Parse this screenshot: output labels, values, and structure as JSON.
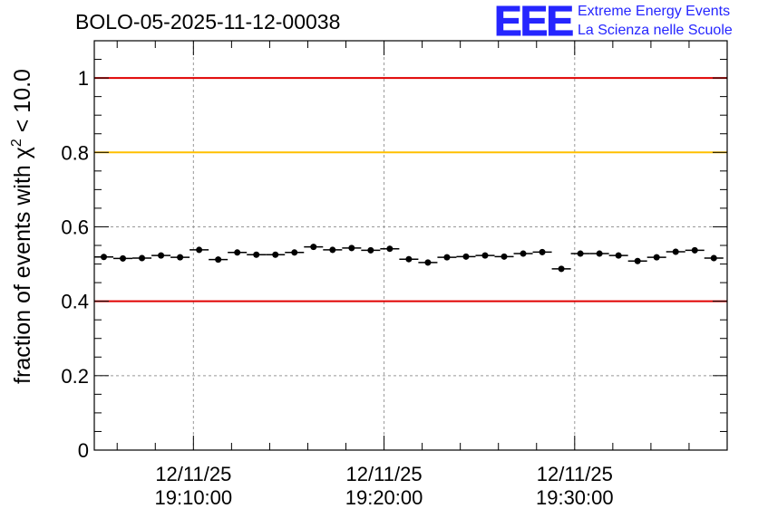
{
  "header": {
    "run_title": "BOLO-05-2025-11-12-00038"
  },
  "logo": {
    "mark": "EEE",
    "line1": "Extreme Energy Events",
    "line2": "La Scienza nelle Scuole",
    "color": "#2525ff"
  },
  "chart_data": {
    "type": "scatter",
    "title": "BOLO-05-2025-11-12-00038",
    "ylabel_prefix": "fraction of events with ",
    "ylabel_symbol": "χ",
    "ylabel_sup": "2",
    "ylabel_suffix": " < 10.0",
    "ylim": [
      0,
      1.1
    ],
    "yticks": [
      0,
      0.2,
      0.4,
      0.6,
      0.8,
      1
    ],
    "ytick_labels": [
      "0",
      "0.2",
      "0.4",
      "0.6",
      "0.8",
      "1"
    ],
    "xlim_minutes": [
      4.8,
      38.0
    ],
    "xticks_minutes": [
      10,
      20,
      30
    ],
    "xtick_labels": [
      [
        "12/11/25",
        "19:10:00"
      ],
      [
        "12/11/25",
        "19:20:00"
      ],
      [
        "12/11/25",
        "19:30:00"
      ]
    ],
    "grid": true,
    "reference_lines": [
      {
        "y": 1.0,
        "color": "#e00000"
      },
      {
        "y": 0.8,
        "color": "#ffc000"
      },
      {
        "y": 0.4,
        "color": "#e00000"
      }
    ],
    "marker_color": "#000000",
    "bin_width_minutes": 1.0,
    "points": [
      {
        "x": 5.3,
        "y": 0.519
      },
      {
        "x": 6.3,
        "y": 0.515
      },
      {
        "x": 7.3,
        "y": 0.516
      },
      {
        "x": 8.3,
        "y": 0.523
      },
      {
        "x": 9.3,
        "y": 0.518
      },
      {
        "x": 10.3,
        "y": 0.538
      },
      {
        "x": 11.3,
        "y": 0.512
      },
      {
        "x": 12.3,
        "y": 0.531
      },
      {
        "x": 13.3,
        "y": 0.525
      },
      {
        "x": 14.3,
        "y": 0.525
      },
      {
        "x": 15.3,
        "y": 0.531
      },
      {
        "x": 16.3,
        "y": 0.546
      },
      {
        "x": 17.3,
        "y": 0.538
      },
      {
        "x": 18.3,
        "y": 0.543
      },
      {
        "x": 19.3,
        "y": 0.537
      },
      {
        "x": 20.3,
        "y": 0.541
      },
      {
        "x": 21.3,
        "y": 0.513
      },
      {
        "x": 22.3,
        "y": 0.504
      },
      {
        "x": 23.3,
        "y": 0.518
      },
      {
        "x": 24.3,
        "y": 0.52
      },
      {
        "x": 25.3,
        "y": 0.523
      },
      {
        "x": 26.3,
        "y": 0.52
      },
      {
        "x": 27.3,
        "y": 0.528
      },
      {
        "x": 28.3,
        "y": 0.532
      },
      {
        "x": 29.3,
        "y": 0.487
      },
      {
        "x": 30.3,
        "y": 0.528
      },
      {
        "x": 31.3,
        "y": 0.528
      },
      {
        "x": 32.3,
        "y": 0.523
      },
      {
        "x": 33.3,
        "y": 0.508
      },
      {
        "x": 34.3,
        "y": 0.518
      },
      {
        "x": 35.3,
        "y": 0.533
      },
      {
        "x": 36.3,
        "y": 0.537
      },
      {
        "x": 37.3,
        "y": 0.516
      }
    ],
    "yerr": 0.008
  }
}
